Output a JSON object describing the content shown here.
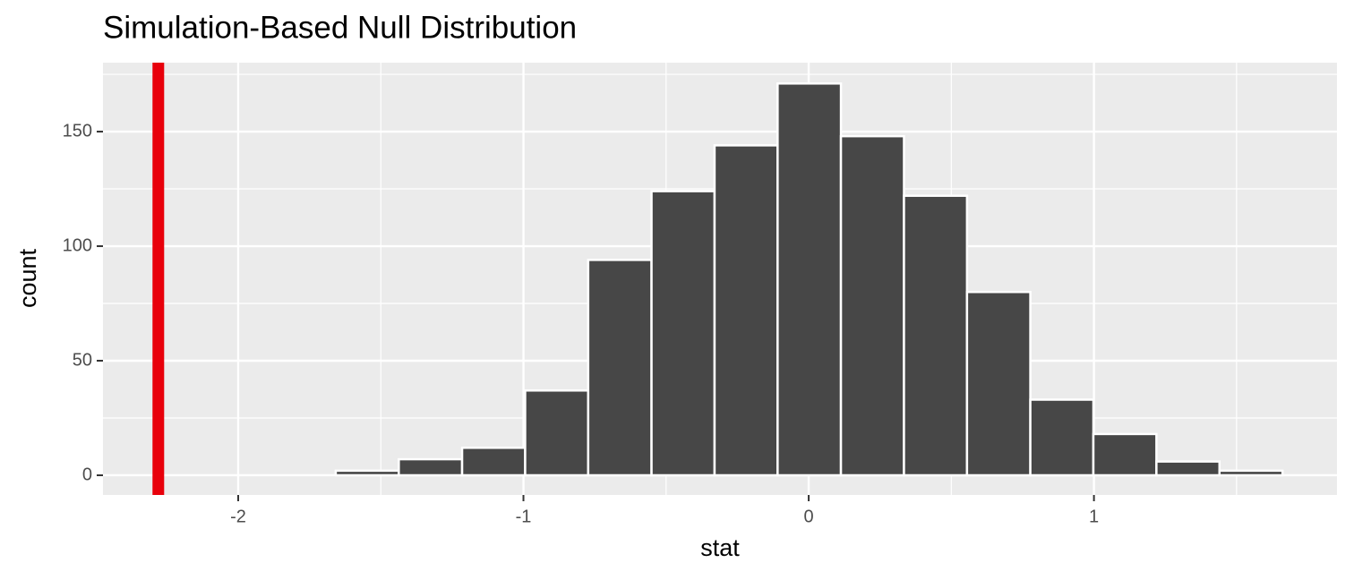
{
  "chart_data": {
    "type": "histogram",
    "title": "Simulation-Based Null Distribution",
    "x_label": "stat",
    "y_label": "count",
    "bins": [
      -1.658,
      -1.437,
      -1.215,
      -0.994,
      -0.773,
      -0.551,
      -0.33,
      -0.109,
      0.113,
      0.334,
      0.555,
      0.777,
      0.998,
      1.219,
      1.44,
      1.661
    ],
    "values": [
      2,
      7,
      12,
      37,
      94,
      124,
      144,
      171,
      148,
      122,
      80,
      33,
      18,
      6,
      2
    ],
    "color": "#474747",
    "reference_line": {
      "value": -2.28,
      "color": "#e8000b"
    },
    "xlim": [
      -2.474,
      1.852
    ],
    "ylim": [
      -8.6,
      180.1
    ],
    "xticks": [
      -2,
      -1,
      0,
      1
    ],
    "yticks": [
      0,
      50,
      100,
      150
    ],
    "x_minor_grid": [
      -1.5,
      -0.5,
      0.5,
      1.5
    ],
    "y_minor_grid": [
      25,
      75,
      125,
      175
    ],
    "grid": true
  }
}
